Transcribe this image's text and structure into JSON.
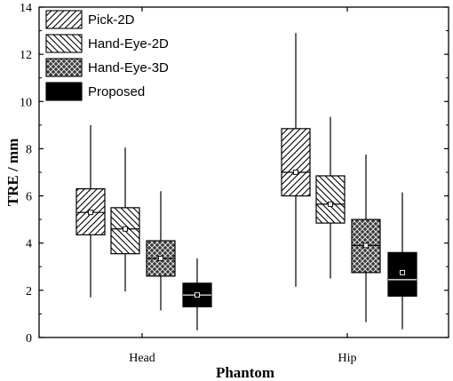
{
  "chart_data": {
    "type": "box",
    "xlabel": "Phantom",
    "ylabel": "TRE / mm",
    "ylim": [
      0,
      14
    ],
    "yticks": [
      0,
      2,
      4,
      6,
      8,
      10,
      12,
      14
    ],
    "categories": [
      "Head",
      "Hip"
    ],
    "legend_position": "top-left",
    "grid": false,
    "series": [
      {
        "name": "Pick-2D",
        "pattern": "diagonal-up",
        "boxes": [
          {
            "category": "Head",
            "min": 1.7,
            "q1": 4.35,
            "median": 5.3,
            "mean": 5.3,
            "q3": 6.3,
            "max": 9.0
          },
          {
            "category": "Hip",
            "min": 2.15,
            "q1": 6.0,
            "median": 7.0,
            "mean": 7.0,
            "q3": 8.85,
            "max": 12.9
          }
        ]
      },
      {
        "name": "Hand-Eye-2D",
        "pattern": "diagonal-down",
        "boxes": [
          {
            "category": "Head",
            "min": 1.95,
            "q1": 3.55,
            "median": 4.6,
            "mean": 4.6,
            "q3": 5.5,
            "max": 8.05
          },
          {
            "category": "Hip",
            "min": 2.5,
            "q1": 4.85,
            "median": 5.65,
            "mean": 5.65,
            "q3": 6.85,
            "max": 9.35
          }
        ]
      },
      {
        "name": "Hand-Eye-3D",
        "pattern": "crosshatch",
        "boxes": [
          {
            "category": "Head",
            "min": 1.15,
            "q1": 2.6,
            "median": 3.35,
            "mean": 3.35,
            "q3": 4.1,
            "max": 6.2
          },
          {
            "category": "Hip",
            "min": 0.65,
            "q1": 2.75,
            "median": 3.9,
            "mean": 3.9,
            "q3": 5.0,
            "max": 7.75
          }
        ]
      },
      {
        "name": "Proposed",
        "pattern": "solid-black",
        "boxes": [
          {
            "category": "Head",
            "min": 0.3,
            "q1": 1.3,
            "median": 1.8,
            "mean": 1.8,
            "q3": 2.3,
            "max": 3.35
          },
          {
            "category": "Hip",
            "min": 0.35,
            "q1": 1.75,
            "median": 2.45,
            "mean": 2.75,
            "q3": 3.6,
            "max": 6.15
          }
        ]
      }
    ]
  }
}
